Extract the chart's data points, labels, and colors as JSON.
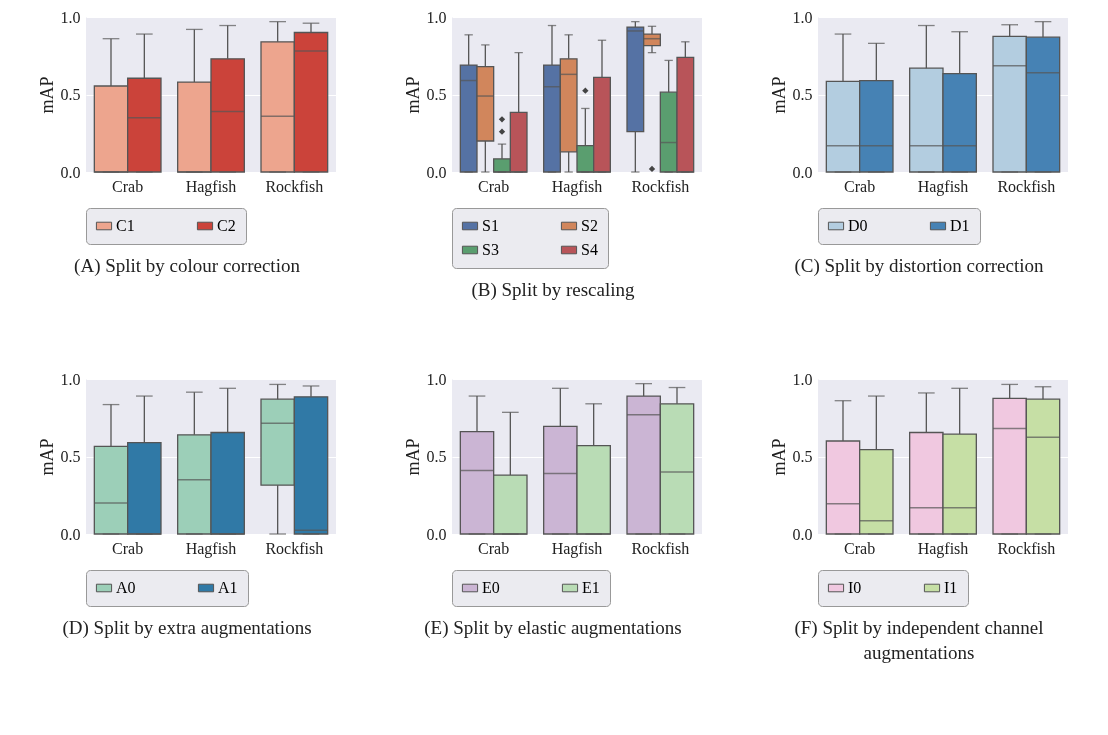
{
  "chart_data": [
    {
      "type": "box",
      "title": "(A) Split by colour correction",
      "categories": [
        "Crab",
        "Hagfish",
        "Rockfish"
      ],
      "ylabel": "mAP",
      "ylim": [
        0,
        1
      ],
      "yticks": [
        {
          "value": 0,
          "label": "0.0"
        },
        {
          "value": 0.5,
          "label": "0.5"
        },
        {
          "value": 1,
          "label": "1.0"
        }
      ],
      "grid": "y",
      "legend": "bottom",
      "series": [
        {
          "name": "C1",
          "color": "#eda58e",
          "boxes": [
            {
              "low": 0,
              "q1": 0,
              "median": 0,
              "q3": 0.555,
              "high": 0.86
            },
            {
              "low": 0,
              "q1": 0,
              "median": 0,
              "q3": 0.58,
              "high": 0.92
            },
            {
              "low": 0,
              "q1": 0,
              "median": 0.36,
              "q3": 0.84,
              "high": 0.97
            }
          ]
        },
        {
          "name": "C2",
          "color": "#cb433a",
          "boxes": [
            {
              "low": 0,
              "q1": 0,
              "median": 0.35,
              "q3": 0.605,
              "high": 0.89
            },
            {
              "low": 0,
              "q1": 0,
              "median": 0.39,
              "q3": 0.73,
              "high": 0.945
            },
            {
              "low": 0,
              "q1": 0,
              "median": 0.78,
              "q3": 0.9,
              "high": 0.96
            }
          ]
        }
      ]
    },
    {
      "type": "box",
      "title": "(B) Split by rescaling",
      "categories": [
        "Crab",
        "Hagfish",
        "Rockfish"
      ],
      "ylabel": "mAP",
      "ylim": [
        0,
        1
      ],
      "yticks": [
        {
          "value": 0,
          "label": "0.0"
        },
        {
          "value": 0.5,
          "label": "0.5"
        },
        {
          "value": 1,
          "label": "1.0"
        }
      ],
      "grid": "y",
      "legend": "bottom",
      "series": [
        {
          "name": "S1",
          "color": "#5572a4",
          "boxes": [
            {
              "low": 0,
              "q1": 0,
              "median": 0.59,
              "q3": 0.69,
              "high": 0.885
            },
            {
              "low": 0,
              "q1": 0,
              "median": 0.55,
              "q3": 0.69,
              "high": 0.945
            },
            {
              "low": 0,
              "q1": 0.26,
              "median": 0.91,
              "q3": 0.935,
              "high": 0.97
            }
          ]
        },
        {
          "name": "S2",
          "color": "#d1865c",
          "boxes": [
            {
              "low": 0,
              "q1": 0.2,
              "median": 0.49,
              "q3": 0.68,
              "high": 0.82
            },
            {
              "low": 0,
              "q1": 0.13,
              "median": 0.63,
              "q3": 0.73,
              "high": 0.885
            },
            {
              "low": 0.77,
              "q1": 0.815,
              "median": 0.86,
              "q3": 0.89,
              "high": 0.94,
              "outliers": [
                0.02
              ]
            }
          ]
        },
        {
          "name": "S3",
          "color": "#5a9e6f",
          "boxes": [
            {
              "low": 0,
              "q1": 0,
              "median": 0,
              "q3": 0.085,
              "high": 0.18,
              "outliers": [
                0.26,
                0.34
              ]
            },
            {
              "low": 0,
              "q1": 0,
              "median": 0,
              "q3": 0.17,
              "high": 0.41,
              "outliers": [
                0.525
              ]
            },
            {
              "low": 0,
              "q1": 0,
              "median": 0.19,
              "q3": 0.515,
              "high": 0.72
            }
          ]
        },
        {
          "name": "S4",
          "color": "#b85459",
          "boxes": [
            {
              "low": 0,
              "q1": 0,
              "median": 0,
              "q3": 0.385,
              "high": 0.77
            },
            {
              "low": 0,
              "q1": 0,
              "median": 0,
              "q3": 0.61,
              "high": 0.85
            },
            {
              "low": 0,
              "q1": 0,
              "median": 0,
              "q3": 0.74,
              "high": 0.84
            }
          ]
        }
      ]
    },
    {
      "type": "box",
      "title": "(C) Split by distortion correction",
      "categories": [
        "Crab",
        "Hagfish",
        "Rockfish"
      ],
      "ylabel": "mAP",
      "ylim": [
        0,
        1
      ],
      "yticks": [
        {
          "value": 0,
          "label": "0.0"
        },
        {
          "value": 0.5,
          "label": "0.5"
        },
        {
          "value": 1,
          "label": "1.0"
        }
      ],
      "grid": "y",
      "legend": "bottom",
      "series": [
        {
          "name": "D0",
          "color": "#b3cde0",
          "boxes": [
            {
              "low": 0,
              "q1": 0,
              "median": 0.17,
              "q3": 0.585,
              "high": 0.89
            },
            {
              "low": 0,
              "q1": 0,
              "median": 0.17,
              "q3": 0.67,
              "high": 0.945
            },
            {
              "low": 0,
              "q1": 0,
              "median": 0.685,
              "q3": 0.875,
              "high": 0.95
            }
          ]
        },
        {
          "name": "D1",
          "color": "#4682b4",
          "boxes": [
            {
              "low": 0,
              "q1": 0,
              "median": 0.17,
              "q3": 0.59,
              "high": 0.83
            },
            {
              "low": 0,
              "q1": 0,
              "median": 0.17,
              "q3": 0.635,
              "high": 0.905
            },
            {
              "low": 0,
              "q1": 0,
              "median": 0.64,
              "q3": 0.87,
              "high": 0.97
            }
          ]
        }
      ]
    },
    {
      "type": "box",
      "title": "(D) Split by extra augmentations",
      "categories": [
        "Crab",
        "Hagfish",
        "Rockfish"
      ],
      "ylabel": "mAP",
      "ylim": [
        0,
        1
      ],
      "yticks": [
        {
          "value": 0,
          "label": "0.0"
        },
        {
          "value": 0.5,
          "label": "0.5"
        },
        {
          "value": 1,
          "label": "1.0"
        }
      ],
      "grid": "y",
      "legend": "bottom",
      "series": [
        {
          "name": "A0",
          "color": "#9ccfb8",
          "boxes": [
            {
              "low": 0,
              "q1": 0,
              "median": 0.2,
              "q3": 0.565,
              "high": 0.835
            },
            {
              "low": 0,
              "q1": 0,
              "median": 0.35,
              "q3": 0.64,
              "high": 0.915
            },
            {
              "low": 0,
              "q1": 0.315,
              "median": 0.715,
              "q3": 0.87,
              "high": 0.965
            }
          ]
        },
        {
          "name": "A1",
          "color": "#3079a6",
          "boxes": [
            {
              "low": 0,
              "q1": 0,
              "median": 0,
              "q3": 0.59,
              "high": 0.89
            },
            {
              "low": 0,
              "q1": 0,
              "median": 0,
              "q3": 0.655,
              "high": 0.94
            },
            {
              "low": 0,
              "q1": 0,
              "median": 0.025,
              "q3": 0.885,
              "high": 0.955
            }
          ]
        }
      ]
    },
    {
      "type": "box",
      "title": "(E) Split by elastic augmentations",
      "categories": [
        "Crab",
        "Hagfish",
        "Rockfish"
      ],
      "ylabel": "mAP",
      "ylim": [
        0,
        1
      ],
      "yticks": [
        {
          "value": 0,
          "label": "0.0"
        },
        {
          "value": 0.5,
          "label": "0.5"
        },
        {
          "value": 1,
          "label": "1.0"
        }
      ],
      "grid": "y",
      "legend": "bottom",
      "series": [
        {
          "name": "E0",
          "color": "#cbb5d4",
          "boxes": [
            {
              "low": 0,
              "q1": 0,
              "median": 0.41,
              "q3": 0.66,
              "high": 0.89
            },
            {
              "low": 0,
              "q1": 0,
              "median": 0.39,
              "q3": 0.695,
              "high": 0.94
            },
            {
              "low": 0,
              "q1": 0,
              "median": 0.77,
              "q3": 0.89,
              "high": 0.97
            }
          ]
        },
        {
          "name": "E1",
          "color": "#b9dcb5",
          "boxes": [
            {
              "low": 0,
              "q1": 0,
              "median": 0,
              "q3": 0.38,
              "high": 0.785
            },
            {
              "low": 0,
              "q1": 0,
              "median": 0,
              "q3": 0.57,
              "high": 0.84
            },
            {
              "low": 0,
              "q1": 0,
              "median": 0.4,
              "q3": 0.84,
              "high": 0.945
            }
          ]
        }
      ]
    },
    {
      "type": "box",
      "title": "(F) Split by independent channel augmentations",
      "categories": [
        "Crab",
        "Hagfish",
        "Rockfish"
      ],
      "ylabel": "mAP",
      "ylim": [
        0,
        1
      ],
      "yticks": [
        {
          "value": 0,
          "label": "0.0"
        },
        {
          "value": 0.5,
          "label": "0.5"
        },
        {
          "value": 1,
          "label": "1.0"
        }
      ],
      "grid": "y",
      "legend": "bottom",
      "series": [
        {
          "name": "I0",
          "color": "#f0c8e0",
          "boxes": [
            {
              "low": 0,
              "q1": 0,
              "median": 0.195,
              "q3": 0.6,
              "high": 0.86
            },
            {
              "low": 0,
              "q1": 0,
              "median": 0.17,
              "q3": 0.655,
              "high": 0.91
            },
            {
              "low": 0,
              "q1": 0,
              "median": 0.68,
              "q3": 0.875,
              "high": 0.965
            }
          ]
        },
        {
          "name": "I1",
          "color": "#c6dfa5",
          "boxes": [
            {
              "low": 0,
              "q1": 0,
              "median": 0.085,
              "q3": 0.545,
              "high": 0.89
            },
            {
              "low": 0,
              "q1": 0,
              "median": 0.17,
              "q3": 0.645,
              "high": 0.94
            },
            {
              "low": 0,
              "q1": 0,
              "median": 0.625,
              "q3": 0.87,
              "high": 0.95
            }
          ]
        }
      ]
    }
  ]
}
